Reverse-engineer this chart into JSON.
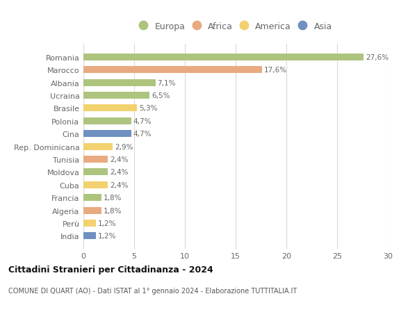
{
  "countries": [
    "Romania",
    "Marocco",
    "Albania",
    "Ucraina",
    "Brasile",
    "Polonia",
    "Cina",
    "Rep. Dominicana",
    "Tunisia",
    "Moldova",
    "Cuba",
    "Francia",
    "Algeria",
    "Perù",
    "India"
  ],
  "values": [
    27.6,
    17.6,
    7.1,
    6.5,
    5.3,
    4.7,
    4.7,
    2.9,
    2.4,
    2.4,
    2.4,
    1.8,
    1.8,
    1.2,
    1.2
  ],
  "labels": [
    "27,6%",
    "17,6%",
    "7,1%",
    "6,5%",
    "5,3%",
    "4,7%",
    "4,7%",
    "2,9%",
    "2,4%",
    "2,4%",
    "2,4%",
    "1,8%",
    "1,8%",
    "1,2%",
    "1,2%"
  ],
  "continents": [
    "Europa",
    "Africa",
    "Europa",
    "Europa",
    "America",
    "Europa",
    "Asia",
    "America",
    "Africa",
    "Europa",
    "America",
    "Europa",
    "Africa",
    "America",
    "Asia"
  ],
  "colors": {
    "Europa": "#adc47e",
    "Africa": "#e8aa80",
    "America": "#f2d26e",
    "Asia": "#7090c0"
  },
  "legend_order": [
    "Europa",
    "Africa",
    "America",
    "Asia"
  ],
  "title": "Cittadini Stranieri per Cittadinanza - 2024",
  "subtitle": "COMUNE DI QUART (AO) - Dati ISTAT al 1° gennaio 2024 - Elaborazione TUTTITALIA.IT",
  "xlim": [
    0,
    30
  ],
  "xticks": [
    0,
    5,
    10,
    15,
    20,
    25,
    30
  ],
  "background_color": "#ffffff",
  "grid_color": "#d8d8d8"
}
